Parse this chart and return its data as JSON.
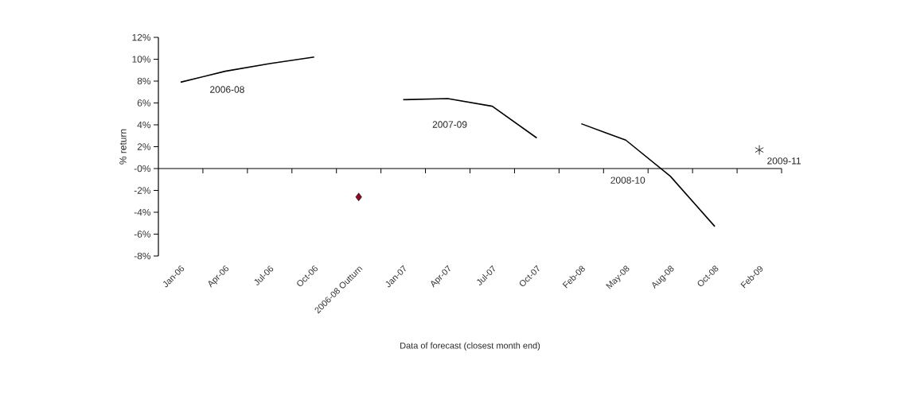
{
  "chart_data": {
    "type": "line",
    "xlabel": "Data of forecast (closest month end)",
    "ylabel": "% return",
    "categories": [
      "Jan-06",
      "Apr-06",
      "Jul-06",
      "Oct-06",
      "2006-08 Outturn",
      "Jan-07",
      "Apr-07",
      "Jul-07",
      "Oct-07",
      "Feb-08",
      "May-08",
      "Aug-08",
      "Oct-08",
      "Feb-09"
    ],
    "series": [
      {
        "name": "2006-08",
        "color": "#000000",
        "marker": "none",
        "values": [
          7.9,
          8.9,
          9.6,
          10.2,
          null,
          null,
          null,
          null,
          null,
          null,
          null,
          null,
          null,
          null
        ]
      },
      {
        "name": "2007-09",
        "color": "#000000",
        "marker": "none",
        "values": [
          null,
          null,
          null,
          null,
          null,
          6.3,
          6.4,
          5.7,
          2.8,
          null,
          null,
          null,
          null,
          null
        ]
      },
      {
        "name": "2008-10",
        "color": "#000000",
        "marker": "none",
        "values": [
          null,
          null,
          null,
          null,
          null,
          null,
          null,
          null,
          null,
          4.1,
          2.6,
          -0.7,
          -5.3,
          null
        ]
      },
      {
        "type": "scatter",
        "color": "#8b0a2a",
        "marker": "diamond",
        "values": [
          null,
          null,
          null,
          null,
          -2.6,
          null,
          null,
          null,
          null,
          null,
          null,
          null,
          null,
          null
        ]
      },
      {
        "name": "2009-11",
        "type": "scatter",
        "color": "#000000",
        "marker": "cross",
        "values": [
          null,
          null,
          null,
          null,
          null,
          null,
          null,
          null,
          null,
          null,
          null,
          null,
          null,
          1.7
        ]
      }
    ],
    "ylim": [
      -8,
      12
    ],
    "yticks": [
      {
        "value": -8,
        "label": "-8%"
      },
      {
        "value": -6,
        "label": "-6%"
      },
      {
        "value": -4,
        "label": "-4%"
      },
      {
        "value": -2,
        "label": "-2%"
      },
      {
        "value": 0,
        "label": "-0%"
      },
      {
        "value": 2,
        "label": "2%"
      },
      {
        "value": 4,
        "label": "4%"
      },
      {
        "value": 6,
        "label": "6%"
      },
      {
        "value": 8,
        "label": "8%"
      },
      {
        "value": 10,
        "label": "10%"
      },
      {
        "value": 12,
        "label": "12%"
      }
    ]
  }
}
